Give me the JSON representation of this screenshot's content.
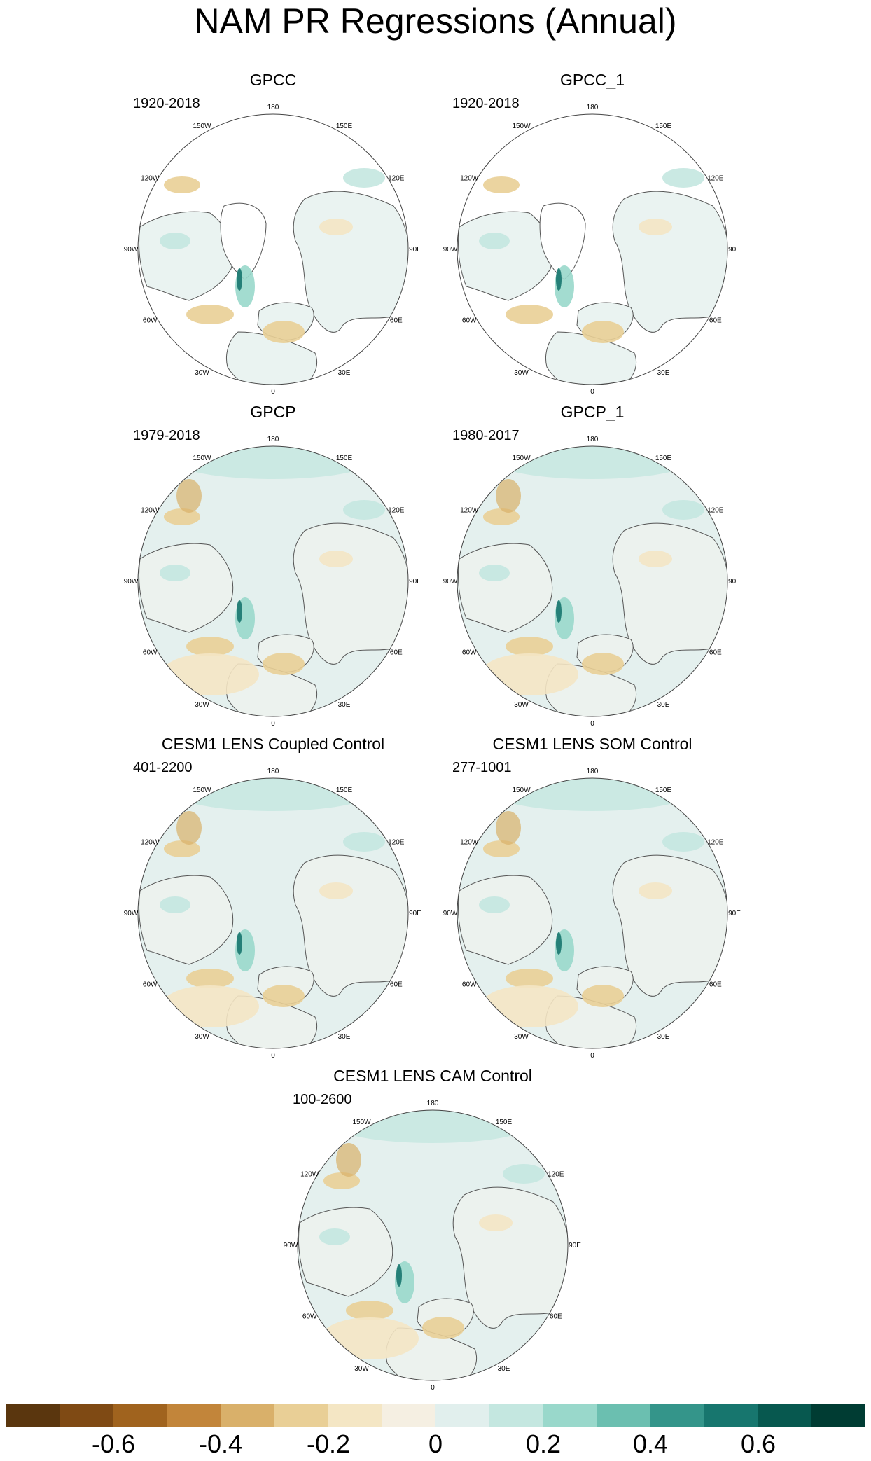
{
  "title": "NAM PR Regressions (Annual)",
  "lon_labels": {
    "l180": "180",
    "l150e": "150E",
    "l120e": "120E",
    "l90e": "90E",
    "l60e": "60E",
    "l30e": "30E",
    "l0": "0",
    "l30w": "30W",
    "l60w": "60W",
    "l90w": "90W",
    "l120w": "120W",
    "l150w": "150W"
  },
  "panels": [
    {
      "title": "GPCC",
      "period": "1920-2018",
      "coverage": "land-only"
    },
    {
      "title": "GPCC_1",
      "period": "1920-2018",
      "coverage": "land-only"
    },
    {
      "title": "GPCP",
      "period": "1979-2018",
      "coverage": "global"
    },
    {
      "title": "GPCP_1",
      "period": "1980-2017",
      "coverage": "global"
    },
    {
      "title": "CESM1 LENS Coupled Control",
      "period": "401-2200",
      "coverage": "global"
    },
    {
      "title": "CESM1 LENS SOM Control",
      "period": "277-1001",
      "coverage": "global"
    },
    {
      "title": "CESM1 LENS CAM Control",
      "period": "100-2600",
      "coverage": "global"
    }
  ],
  "colorbar": {
    "colors": [
      "#5a360e",
      "#7f4a14",
      "#a0631e",
      "#c2853a",
      "#d9b06a",
      "#e9cf96",
      "#f4e6c4",
      "#f5efe2",
      "#e1efed",
      "#c4e7e0",
      "#99d8cb",
      "#6bbfb0",
      "#34958a",
      "#17766e",
      "#07584f",
      "#003c33"
    ],
    "ticks": [
      "-0.6",
      "-0.4",
      "-0.2",
      "0",
      "0.2",
      "0.4",
      "0.6"
    ]
  }
}
